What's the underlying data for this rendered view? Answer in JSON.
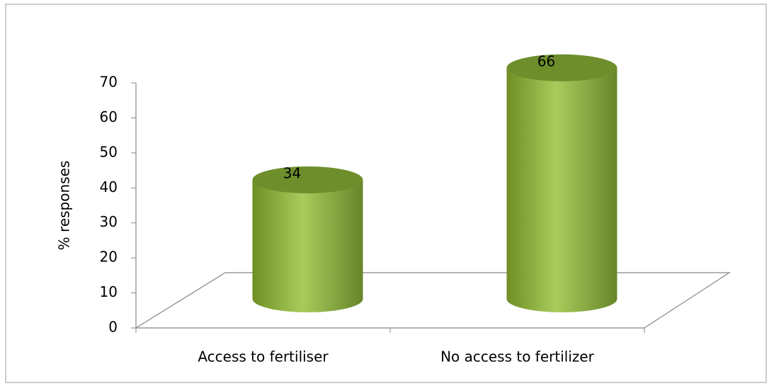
{
  "chart_data": {
    "type": "cylinder",
    "categories": [
      "Access to fertiliser",
      "No access to fertilizer"
    ],
    "values": [
      34,
      66
    ],
    "color": "#93b843",
    "y_label": "% responses",
    "ylim": [
      0,
      70
    ],
    "yticks": [
      0,
      10,
      20,
      30,
      40,
      50,
      60,
      70
    ]
  }
}
